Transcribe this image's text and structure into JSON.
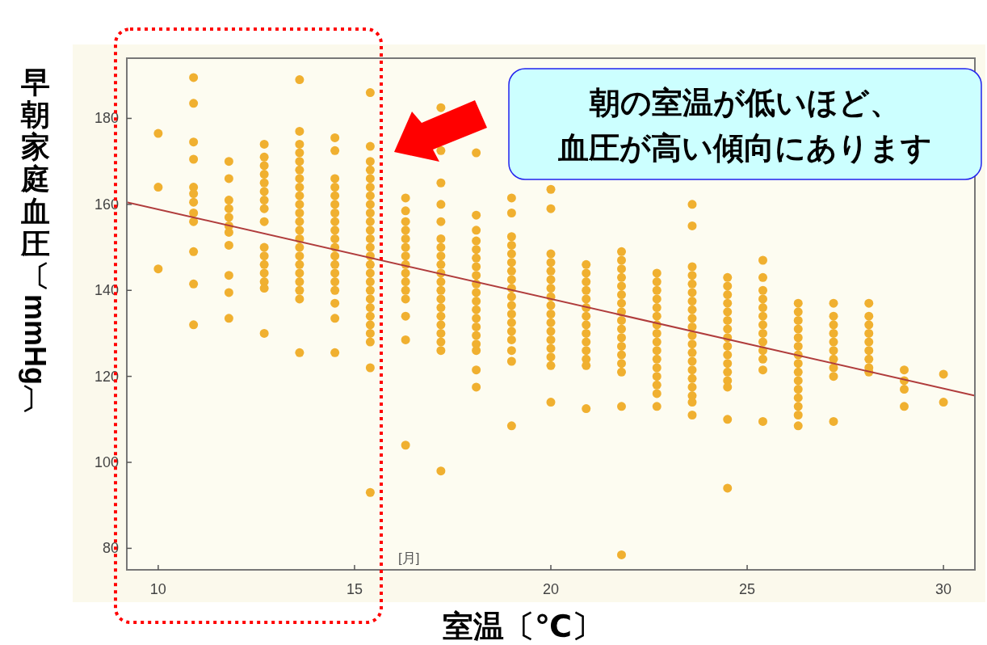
{
  "chart_data": {
    "type": "scatter",
    "xlabel": "室温〔℃〕",
    "ylabel": "早朝家庭血圧〔mmHg〕",
    "annotations": [
      "朝の室温が低いほど、血圧が高い傾向にあります",
      "[月]"
    ],
    "xlim": [
      9.2,
      30.8
    ],
    "ylim": [
      75,
      194
    ],
    "xticks": [
      10,
      15,
      20,
      25,
      30
    ],
    "yticks": [
      80,
      100,
      120,
      140,
      160,
      180
    ],
    "series": [
      {
        "type": "scatter",
        "color": "#f0b030",
        "marker": "circle",
        "x": [
          10,
          10,
          10,
          10.9,
          10.9,
          10.9,
          10.9,
          10.9,
          10.9,
          10.9,
          10.9,
          10.9,
          10.9,
          10.9,
          10.9,
          11.8,
          11.8,
          11.8,
          11.8,
          11.8,
          11.8,
          11.8,
          11.8,
          11.8,
          11.8,
          11.8,
          12.7,
          12.7,
          12.7,
          12.7,
          12.7,
          12.7,
          12.7,
          12.7,
          12.7,
          12.7,
          12.7,
          12.7,
          12.7,
          12.7,
          12.7,
          12.7,
          13.6,
          13.6,
          13.6,
          13.6,
          13.6,
          13.6,
          13.6,
          13.6,
          13.6,
          13.6,
          13.6,
          13.6,
          13.6,
          13.6,
          13.6,
          13.6,
          13.6,
          13.6,
          13.6,
          13.6,
          13.6,
          13.6,
          14.5,
          14.5,
          14.5,
          14.5,
          14.5,
          14.5,
          14.5,
          14.5,
          14.5,
          14.5,
          14.5,
          14.5,
          14.5,
          14.5,
          14.5,
          14.5,
          14.5,
          14.5,
          14.5,
          15.4,
          15.4,
          15.4,
          15.4,
          15.4,
          15.4,
          15.4,
          15.4,
          15.4,
          15.4,
          15.4,
          15.4,
          15.4,
          15.4,
          15.4,
          15.4,
          15.4,
          15.4,
          15.4,
          15.4,
          15.4,
          15.4,
          15.4,
          15.4,
          15.4,
          15.4,
          16.3,
          16.3,
          16.3,
          16.3,
          16.3,
          16.3,
          16.3,
          16.3,
          16.3,
          16.3,
          16.3,
          16.3,
          16.3,
          16.3,
          16.3,
          17.2,
          17.2,
          17.2,
          17.2,
          17.2,
          17.2,
          17.2,
          17.2,
          17.2,
          17.2,
          17.2,
          17.2,
          17.2,
          17.2,
          17.2,
          17.2,
          17.2,
          17.2,
          17.2,
          17.2,
          18.1,
          18.1,
          18.1,
          18.1,
          18.1,
          18.1,
          18.1,
          18.1,
          18.1,
          18.1,
          18.1,
          18.1,
          18.1,
          18.1,
          18.1,
          18.1,
          18.1,
          18.1,
          18.1,
          19,
          19,
          19,
          19,
          19,
          19,
          19,
          19,
          19,
          19,
          19,
          19,
          19,
          19,
          19,
          19,
          19,
          19,
          20,
          20,
          20,
          20,
          20,
          20,
          20,
          20,
          20,
          20,
          20,
          20,
          20,
          20,
          20,
          20,
          20,
          20.9,
          20.9,
          20.9,
          20.9,
          20.9,
          20.9,
          20.9,
          20.9,
          20.9,
          20.9,
          20.9,
          20.9,
          20.9,
          20.9,
          21.8,
          21.8,
          21.8,
          21.8,
          21.8,
          21.8,
          21.8,
          21.8,
          21.8,
          21.8,
          21.8,
          21.8,
          21.8,
          21.8,
          21.8,
          21.8,
          21.8,
          22.7,
          22.7,
          22.7,
          22.7,
          22.7,
          22.7,
          22.7,
          22.7,
          22.7,
          22.7,
          22.7,
          22.7,
          22.7,
          22.7,
          22.7,
          22.7,
          23.6,
          23.6,
          23.6,
          23.6,
          23.6,
          23.6,
          23.6,
          23.6,
          23.6,
          23.6,
          23.6,
          23.6,
          23.6,
          23.6,
          23.6,
          23.6,
          23.6,
          23.6,
          23.6,
          23.6,
          24.5,
          24.5,
          24.5,
          24.5,
          24.5,
          24.5,
          24.5,
          24.5,
          24.5,
          24.5,
          24.5,
          24.5,
          24.5,
          24.5,
          24.5,
          24.5,
          25.4,
          25.4,
          25.4,
          25.4,
          25.4,
          25.4,
          25.4,
          25.4,
          25.4,
          25.4,
          25.4,
          25.4,
          25.4,
          26.3,
          26.3,
          26.3,
          26.3,
          26.3,
          26.3,
          26.3,
          26.3,
          26.3,
          26.3,
          26.3,
          26.3,
          26.3,
          26.3,
          26.3,
          27.2,
          27.2,
          27.2,
          27.2,
          27.2,
          27.2,
          27.2,
          27.2,
          27.2,
          27.2,
          28.1,
          28.1,
          28.1,
          28.1,
          28.1,
          28.1,
          28.1,
          28.1,
          28.1,
          29,
          29,
          29,
          29,
          30,
          30
        ],
        "values": [
          176.5,
          164,
          145,
          189.5,
          183.5,
          174.5,
          170.5,
          164,
          162.5,
          160.5,
          158,
          156,
          149,
          141.5,
          132,
          170,
          166,
          161,
          159,
          157,
          155,
          153.5,
          150.5,
          143.5,
          139.5,
          133.5,
          174,
          171,
          169,
          167,
          165,
          163,
          161,
          159,
          156,
          150,
          148,
          146,
          144,
          142,
          140.5,
          130,
          189,
          177,
          174,
          172,
          170,
          168,
          166,
          164,
          162,
          160,
          158,
          156,
          154,
          152,
          150,
          148,
          146,
          144,
          142,
          140,
          138,
          125.5,
          175.5,
          172.5,
          166,
          164,
          162,
          160,
          158,
          156,
          154,
          152,
          150,
          148,
          146,
          144,
          142,
          140,
          137,
          133.5,
          125.5,
          186,
          173.5,
          170,
          168,
          166,
          164,
          162,
          160,
          158,
          156,
          154,
          152,
          150,
          148,
          146,
          144,
          142,
          140,
          138,
          136,
          134,
          132,
          130,
          128,
          122,
          93,
          161.5,
          158.5,
          156,
          154,
          152,
          150,
          148,
          146,
          144,
          142,
          140,
          138,
          134,
          128.5,
          104,
          182.5,
          172.5,
          165,
          160,
          156,
          152,
          150,
          148,
          146,
          144,
          142,
          140,
          138,
          136,
          134,
          132,
          130,
          128,
          126,
          98,
          172,
          157.5,
          154,
          151.5,
          149.5,
          147.5,
          145.5,
          143.5,
          141.5,
          139.5,
          137.5,
          135.5,
          133.5,
          131.5,
          129.5,
          127.5,
          126,
          121.5,
          117.5,
          161.5,
          158,
          152.5,
          150.5,
          148.5,
          146.5,
          144.5,
          142.5,
          140.5,
          138.5,
          136.5,
          134.5,
          132.5,
          130.5,
          128.5,
          126,
          123.5,
          108.5,
          163.5,
          159,
          148.5,
          146.5,
          144.5,
          142.5,
          140.5,
          138.5,
          136.5,
          134.5,
          132.5,
          130.5,
          128.5,
          126.5,
          124.5,
          122.5,
          114,
          146,
          144,
          142,
          140,
          138,
          136,
          134,
          132,
          130,
          128,
          126,
          124,
          122.5,
          112.5,
          149,
          147,
          145,
          143,
          141,
          139,
          137,
          135,
          133,
          131,
          129,
          127,
          125,
          123,
          121,
          113,
          78.5,
          144,
          142,
          140,
          138,
          136,
          134,
          132,
          130,
          128,
          126,
          124,
          122,
          120,
          118,
          116,
          113,
          160,
          155,
          145.5,
          143.5,
          141.5,
          139.5,
          137.5,
          135.5,
          133.5,
          131.5,
          129.5,
          127.5,
          125.5,
          123.5,
          121.5,
          119.5,
          117.5,
          115.5,
          114,
          111,
          143,
          141,
          139,
          137,
          135,
          133,
          131,
          129,
          127,
          125,
          123,
          121,
          119,
          117.5,
          110,
          94,
          147,
          143,
          140,
          138,
          136,
          134,
          132,
          130,
          128,
          126,
          124,
          121.5,
          109.5,
          137,
          135,
          133,
          131,
          129,
          127,
          125,
          123,
          121,
          119,
          117,
          115,
          113,
          111,
          108.5,
          137,
          134,
          132,
          130,
          128,
          126,
          124,
          122,
          120,
          109.5,
          137,
          134,
          132,
          130,
          128,
          126,
          124,
          122,
          121,
          121.5,
          119,
          117,
          113,
          120.5,
          114
        ]
      },
      {
        "type": "line",
        "color": "#b03c3c",
        "marker": "none",
        "x": [
          9.2,
          30.8
        ],
        "values": [
          160.5,
          115.5
        ]
      }
    ]
  }
}
